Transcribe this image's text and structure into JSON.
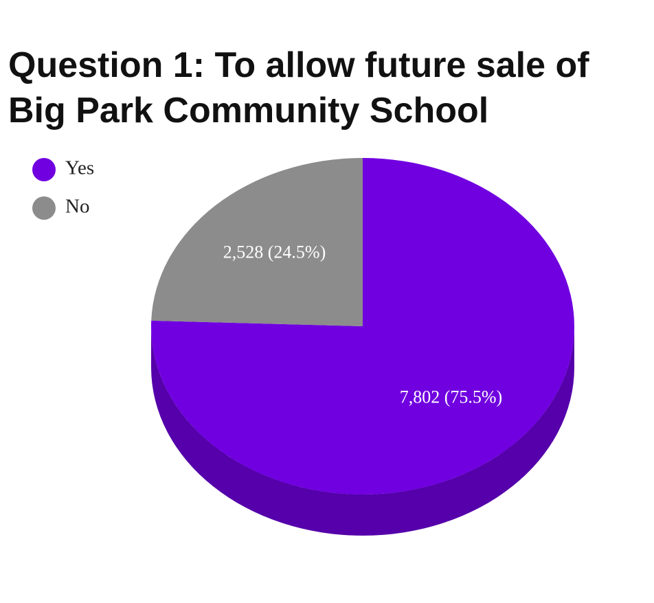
{
  "chart_data": {
    "type": "pie",
    "title": "Question 1: To allow future sale of Big Park Community School",
    "categories": [
      "Yes",
      "No"
    ],
    "values": [
      7802,
      2528
    ],
    "value_labels": [
      "7,802 (75.5%)",
      "2,528 (24.5%)"
    ],
    "colors": [
      "#7000e0",
      "#8c8c8c"
    ],
    "side_colors": [
      "#5500aa",
      "#6a6a6a"
    ]
  }
}
